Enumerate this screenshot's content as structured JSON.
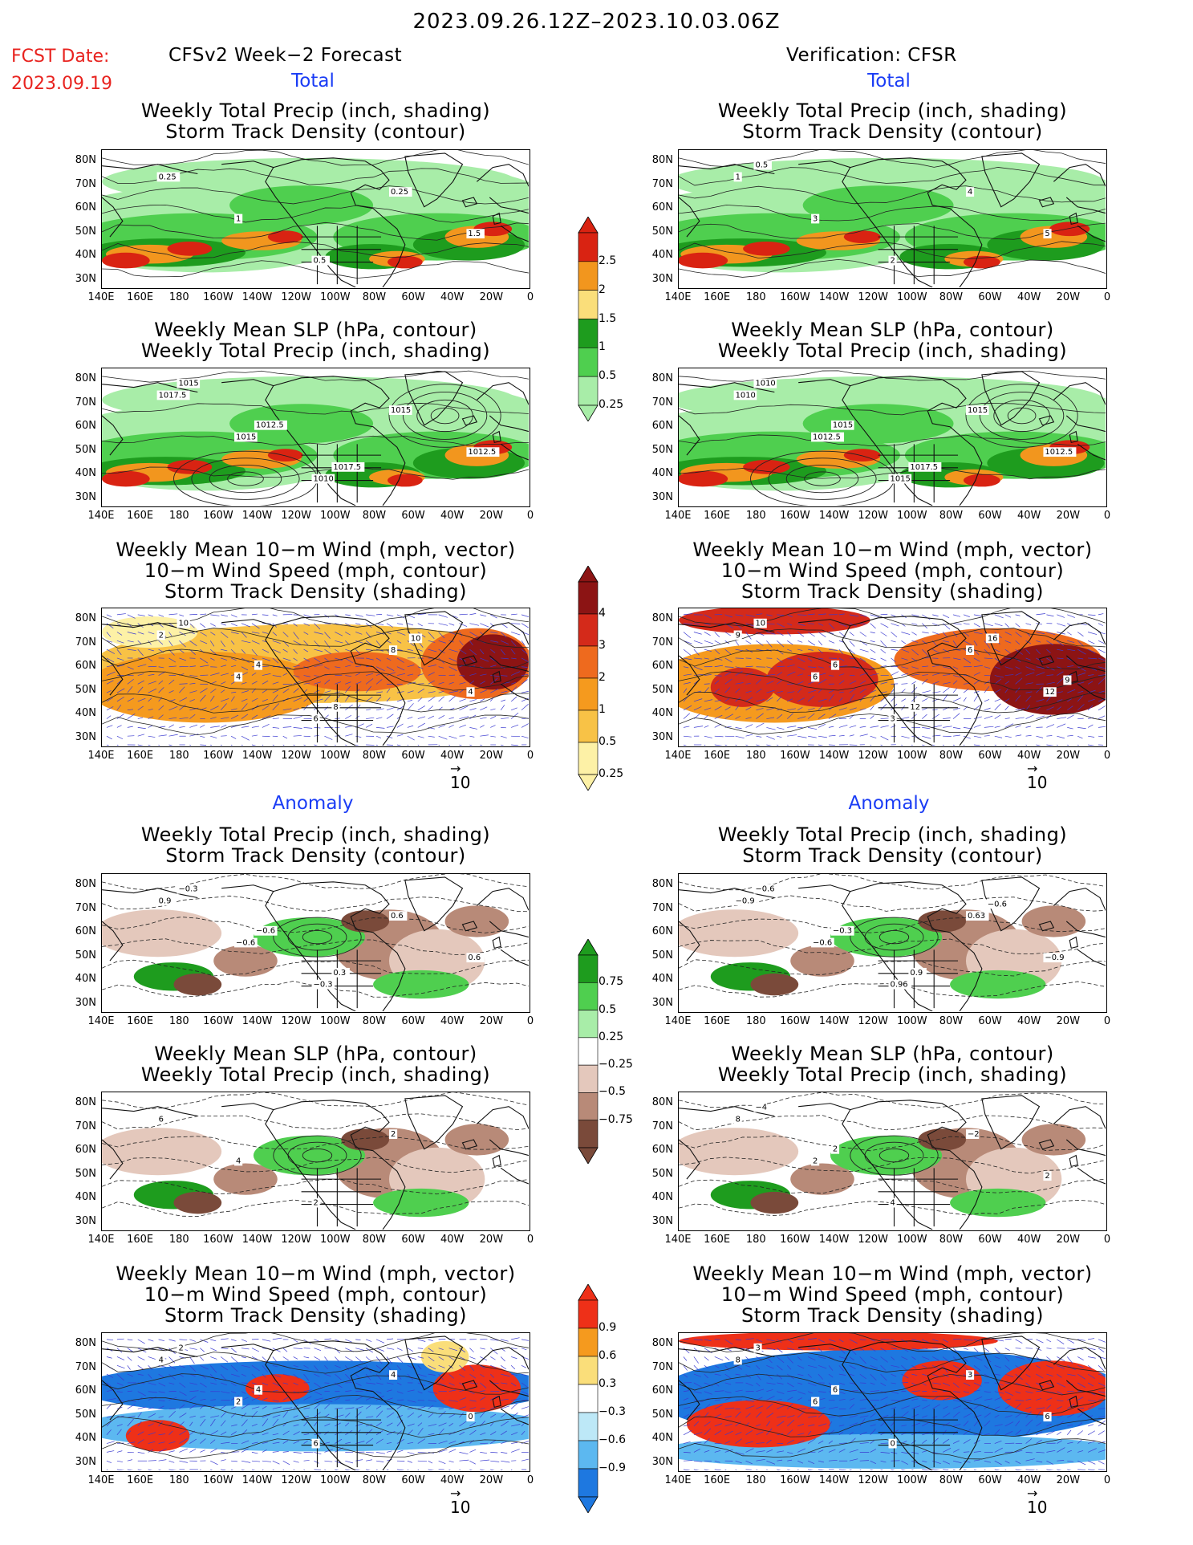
{
  "header": {
    "period": "2023.09.26.12Z–2023.10.03.06Z",
    "fcst_label": "FCST Date:",
    "fcst_date": "2023.09.19",
    "left_title": "CFSv2 Week−2 Forecast",
    "right_title": "Verification: CFSR"
  },
  "sections": {
    "total": "Total",
    "anomaly": "Anomaly"
  },
  "panel_titles": {
    "precip": [
      "Weekly Total Precip (inch, shading)",
      "Storm Track Density (contour)"
    ],
    "slp": [
      "Weekly Mean SLP (hPa, contour)",
      "Weekly Total Precip (inch, shading)"
    ],
    "wind": [
      "Weekly Mean 10−m Wind (mph, vector)",
      "10−m Wind Speed (mph, contour)",
      "Storm Track Density (shading)"
    ]
  },
  "axes": {
    "lat_labels": [
      "80N",
      "70N",
      "60N",
      "50N",
      "40N",
      "30N"
    ],
    "lon_labels": [
      "140E",
      "160E",
      "180",
      "160W",
      "140W",
      "120W",
      "100W",
      "80W",
      "60W",
      "40W",
      "20W",
      "0"
    ]
  },
  "vector_ref": {
    "label": "10"
  },
  "colorbars": {
    "precip_total": {
      "labels": [
        "2.5",
        "2",
        "1.5",
        "1",
        "0.5",
        "0.25"
      ],
      "colors": [
        "#d92312",
        "#f2961e",
        "#fade7a",
        "#1e9c1e",
        "#4fcf4f",
        "#a8eda8"
      ]
    },
    "storm_total": {
      "labels": [
        "4",
        "3",
        "2",
        "1",
        "0.5",
        "0.25"
      ],
      "colors": [
        "#8c1414",
        "#d42a1a",
        "#ee6a1e",
        "#f59a1e",
        "#f8c246",
        "#fdf1a6"
      ]
    },
    "precip_anom": {
      "labels": [
        "0.75",
        "0.5",
        "0.25",
        "−0.25",
        "−0.5",
        "−0.75"
      ],
      "colors": [
        "#1e9c1e",
        "#4fcf4f",
        "#a8eda8",
        "#ffffff",
        "#e4c8bc",
        "#b88a78",
        "#7a4a3a"
      ]
    },
    "storm_anom": {
      "labels": [
        "0.9",
        "0.6",
        "0.3",
        "−0.3",
        "−0.6",
        "−0.9"
      ],
      "colors": [
        "#ee3018",
        "#f59a1e",
        "#fade7a",
        "#ffffff",
        "#bde8f7",
        "#5cb8f0",
        "#1e78e0"
      ]
    }
  },
  "panels": {
    "l1": [
      "0.25",
      "1",
      "0.5",
      "0.25",
      "1.5"
    ],
    "r1": [
      "1",
      "3",
      "2",
      "4",
      "5",
      "0.5"
    ],
    "l2": [
      "1017.5",
      "1015",
      "1010",
      "1015",
      "1012.5",
      "1015",
      "1012.5",
      "1017.5"
    ],
    "r2": [
      "1010",
      "1012.5",
      "1015",
      "1015",
      "1012.5",
      "1010",
      "1015",
      "1017.5"
    ],
    "l3": [
      "2",
      "4",
      "6",
      "8",
      "4",
      "10",
      "4",
      "8",
      "10"
    ],
    "r3": [
      "9",
      "6",
      "3",
      "6",
      "12",
      "10",
      "6",
      "12",
      "16",
      "9"
    ],
    "l4": [
      "0.9",
      "−0.6",
      "−0.3",
      "0.6",
      "0.6",
      "−0.3",
      "−0.6",
      "0.3"
    ],
    "r4": [
      "−0.9",
      "−0.6",
      "0.96",
      "0.63",
      "−0.9",
      "−0.6",
      "−0.3",
      "0.9",
      "−0.6"
    ],
    "l5": [
      "6",
      "4",
      "2",
      "2"
    ],
    "r5": [
      "8",
      "2",
      "4",
      "−2",
      "2",
      "−4",
      "2"
    ],
    "l6": [
      "4",
      "2",
      "6",
      "4",
      "0",
      "2",
      "4"
    ],
    "r6": [
      "8",
      "6",
      "0",
      "3",
      "6",
      "3",
      "6"
    ]
  }
}
